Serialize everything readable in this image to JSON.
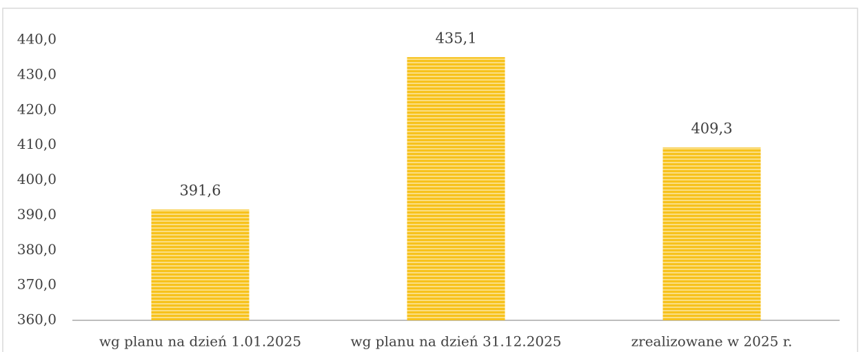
{
  "chart_data": {
    "type": "bar",
    "categories": [
      "wg planu na dzień 1.01.2025",
      "wg planu na dzień 31.12.2025",
      "zrealizowane w 2025 r."
    ],
    "values": [
      391.6,
      435.1,
      409.3
    ],
    "value_labels": [
      "391,6",
      "435,1",
      "409,3"
    ],
    "color": "#f7c21c",
    "ylim": [
      360,
      440
    ],
    "yticks": [
      {
        "value": 360,
        "label": "360,0"
      },
      {
        "value": 370,
        "label": "370,0"
      },
      {
        "value": 380,
        "label": "380,0"
      },
      {
        "value": 390,
        "label": "390,0"
      },
      {
        "value": 400,
        "label": "400,0"
      },
      {
        "value": 410,
        "label": "410,0"
      },
      {
        "value": 420,
        "label": "420,0"
      },
      {
        "value": 430,
        "label": "430,0"
      },
      {
        "value": 440,
        "label": "440,0"
      }
    ],
    "grid": false
  }
}
